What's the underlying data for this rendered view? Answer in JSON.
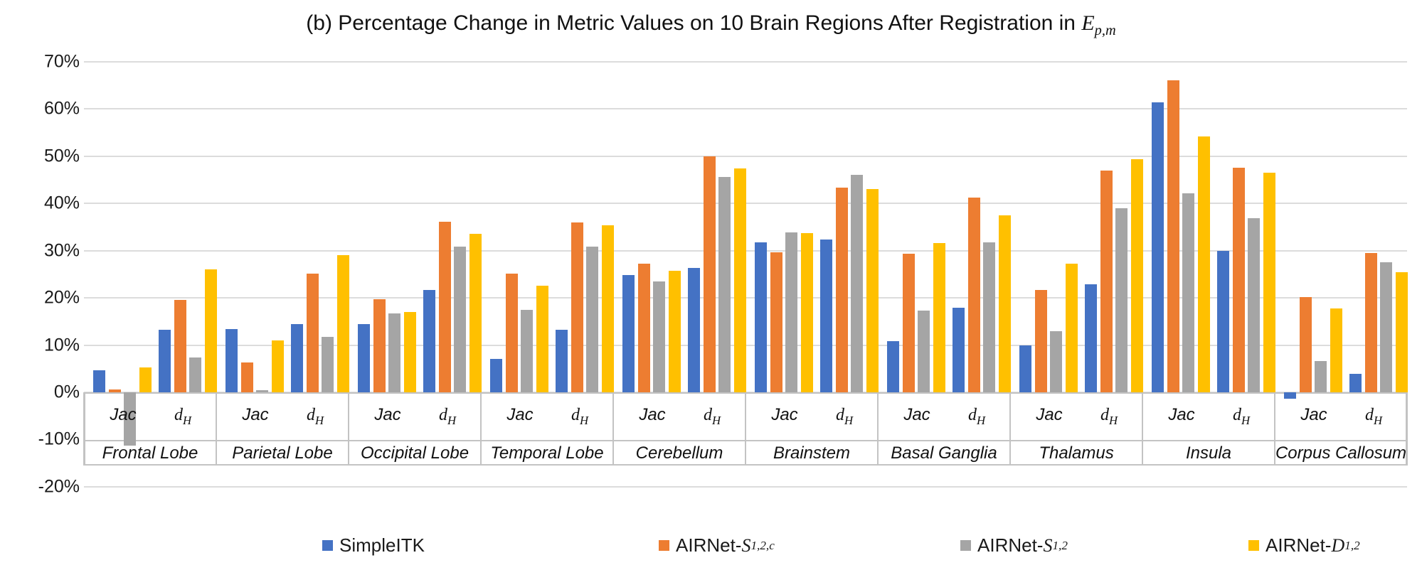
{
  "header": {
    "prefix": "(b) Percentage Change in Metric Values on 10 Brain Regions After Registration in ",
    "math": "E",
    "sub": "p,m"
  },
  "chart_data": {
    "type": "bar",
    "title": "(b) Percentage Change in Metric Values on 10 Brain Regions After Registration in E_p,m",
    "ylabel": "",
    "ylim": [
      -20,
      70
    ],
    "y_tick_step": 10,
    "y_tick_labels": [
      "70%",
      "60%",
      "50%",
      "40%",
      "30%",
      "20%",
      "10%",
      "0%",
      "-10%",
      "-20%"
    ],
    "grid": true,
    "legend_position": "bottom",
    "metrics": [
      {
        "key": "Jac",
        "label": "Jac",
        "sub": ""
      },
      {
        "key": "dH",
        "label": "d",
        "sub": "H"
      }
    ],
    "series": [
      {
        "name": "SimpleITK",
        "name_prefix": "SimpleITK",
        "name_math": "",
        "name_sub": "",
        "color": "#4472C4"
      },
      {
        "name": "AIRNet-S_1,2,c",
        "name_prefix": "AIRNet-",
        "name_math": "S",
        "name_sub": "1,2,c",
        "color": "#ED7D31"
      },
      {
        "name": "AIRNet-S_1,2",
        "name_prefix": "AIRNet-",
        "name_math": "S",
        "name_sub": "1,2",
        "color": "#A5A5A5"
      },
      {
        "name": "AIRNet-D_1,2",
        "name_prefix": "AIRNet-",
        "name_math": "D",
        "name_sub": "1,2",
        "color": "#FFC000"
      }
    ],
    "regions": [
      {
        "name": "Frontal Lobe",
        "values": {
          "Jac": [
            4.6,
            0.6,
            -11.3,
            5.2
          ],
          "dH": [
            13.2,
            19.6,
            7.3,
            26.1
          ]
        }
      },
      {
        "name": "Parietal Lobe",
        "values": {
          "Jac": [
            13.4,
            6.3,
            0.4,
            11.0
          ],
          "dH": [
            14.5,
            25.2,
            11.8,
            29.0
          ]
        }
      },
      {
        "name": "Occipital Lobe",
        "values": {
          "Jac": [
            14.5,
            19.7,
            16.7,
            17.0
          ],
          "dH": [
            21.6,
            36.1,
            30.9,
            33.5
          ]
        }
      },
      {
        "name": "Temporal Lobe",
        "values": {
          "Jac": [
            7.1,
            25.1,
            17.5,
            22.6
          ],
          "dH": [
            13.2,
            35.9,
            30.9,
            35.4
          ]
        }
      },
      {
        "name": "Cerebellum",
        "values": {
          "Jac": [
            24.9,
            27.3,
            23.5,
            25.8
          ],
          "dH": [
            26.4,
            50.0,
            45.6,
            47.4
          ]
        }
      },
      {
        "name": "Brainstem",
        "values": {
          "Jac": [
            31.8,
            29.6,
            33.8,
            33.7
          ],
          "dH": [
            32.4,
            43.3,
            46.0,
            43.0
          ]
        }
      },
      {
        "name": "Basal Ganglia",
        "values": {
          "Jac": [
            10.9,
            29.3,
            17.3,
            31.6
          ],
          "dH": [
            17.9,
            41.3,
            31.7,
            37.4
          ]
        }
      },
      {
        "name": "Thalamus",
        "values": {
          "Jac": [
            9.9,
            21.6,
            12.9,
            27.2
          ],
          "dH": [
            22.9,
            47.0,
            39.0,
            49.3
          ]
        }
      },
      {
        "name": "Insula",
        "values": {
          "Jac": [
            61.4,
            66.0,
            42.2,
            54.2
          ],
          "dH": [
            29.9,
            47.6,
            36.9,
            46.5
          ]
        }
      },
      {
        "name": "Corpus Callosum",
        "values": {
          "Jac": [
            -1.4,
            20.1,
            6.6,
            17.7
          ],
          "dH": [
            3.9,
            29.5,
            27.6,
            25.4
          ]
        }
      }
    ]
  }
}
